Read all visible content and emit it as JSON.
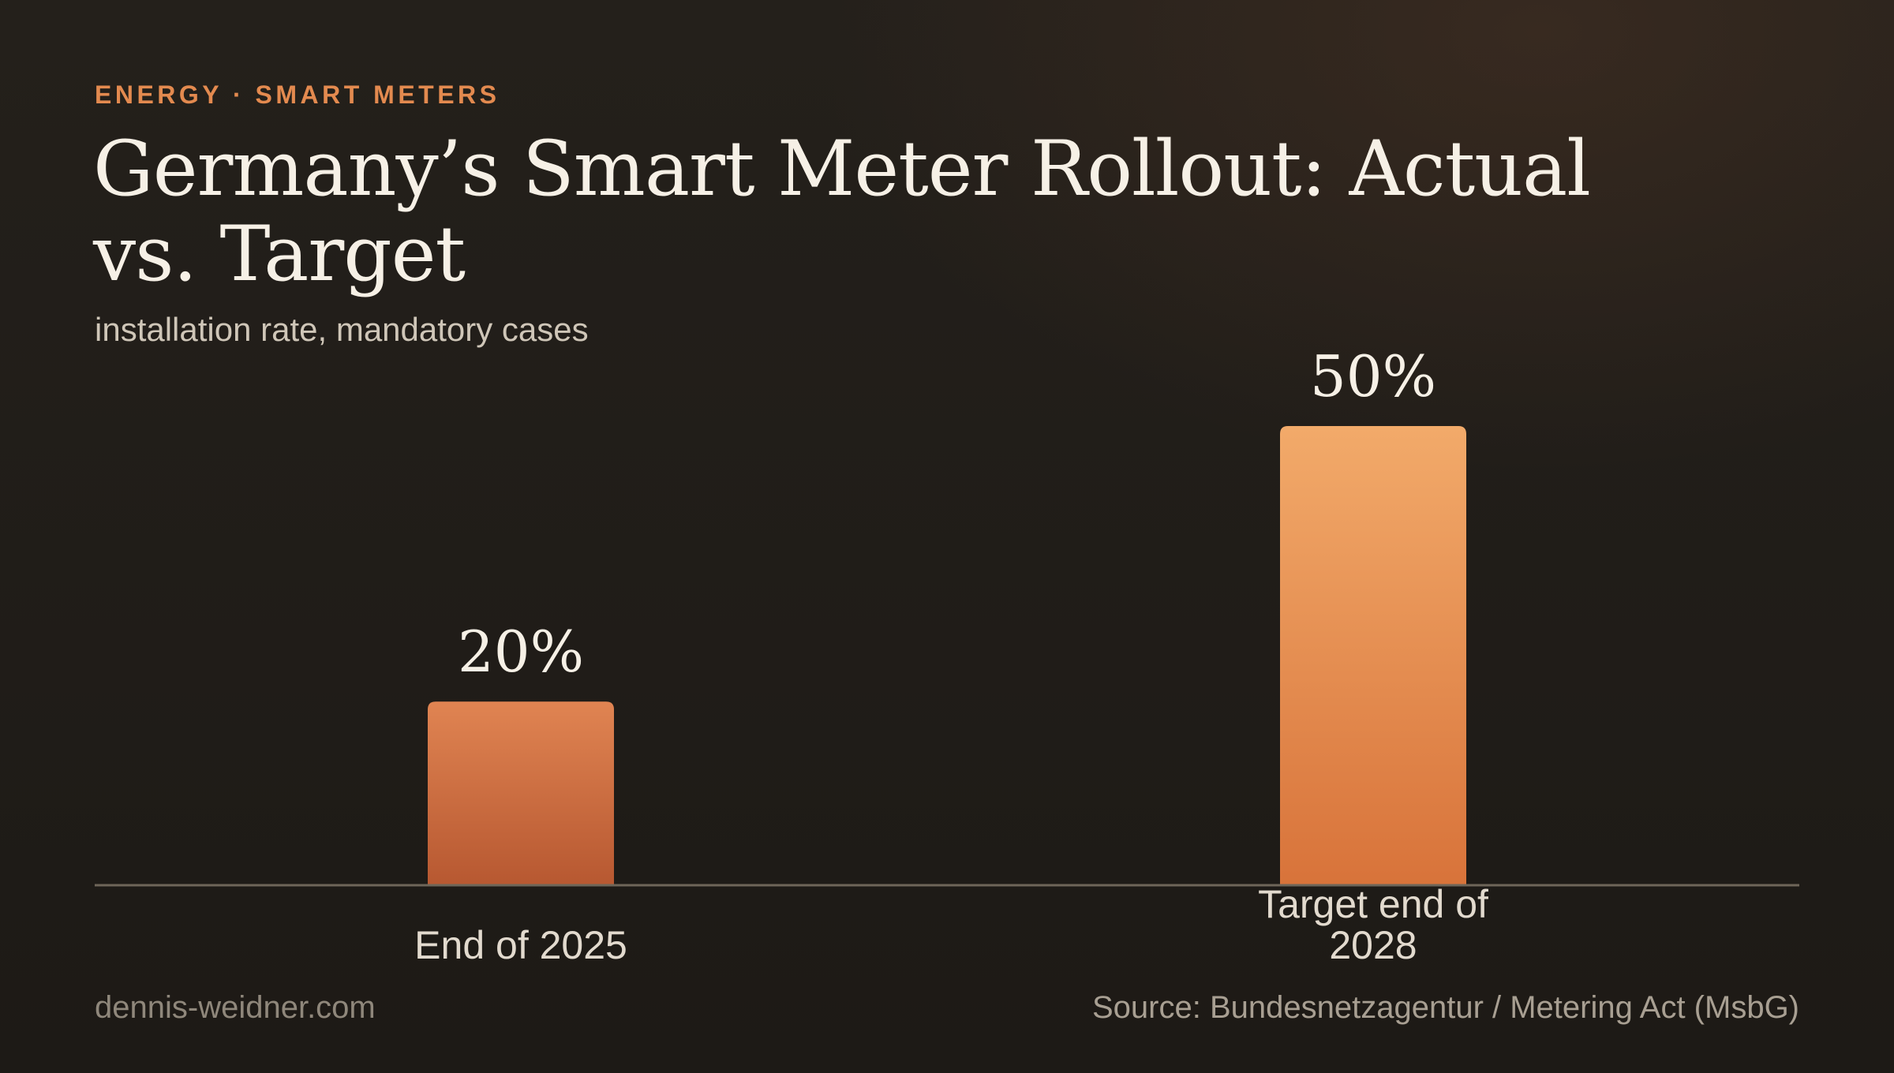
{
  "header": {
    "eyebrow": "ENERGY · SMART METERS",
    "title": "Germany’s Smart Meter Rollout: Actual vs. Target",
    "subtitle": "installation rate, mandatory cases"
  },
  "footer": {
    "site": "dennis-weidner.com",
    "source": "Source: Bundesnetzagentur / Metering Act (MsbG)"
  },
  "colors": {
    "background": "#1f1c18",
    "accent": "#e38a4f",
    "bar_actual_top": "#e08452",
    "bar_actual_bottom": "#b75831",
    "bar_target_top": "#f2aa6a",
    "bar_target_bottom": "#d8733a",
    "baseline": "#6e6659"
  },
  "chart_data": {
    "type": "bar",
    "categories": [
      [
        "End of 2025"
      ],
      [
        "Target end of",
        "2028"
      ]
    ],
    "values": [
      20,
      50
    ],
    "value_labels": [
      "20%",
      "50%"
    ],
    "unit": "%",
    "title": "Germany’s Smart Meter Rollout: Actual vs. Target",
    "subtitle": "installation rate, mandatory cases",
    "xlabel": "",
    "ylabel": "",
    "ylim": [
      0,
      50
    ],
    "grid": false,
    "legend": "none"
  }
}
